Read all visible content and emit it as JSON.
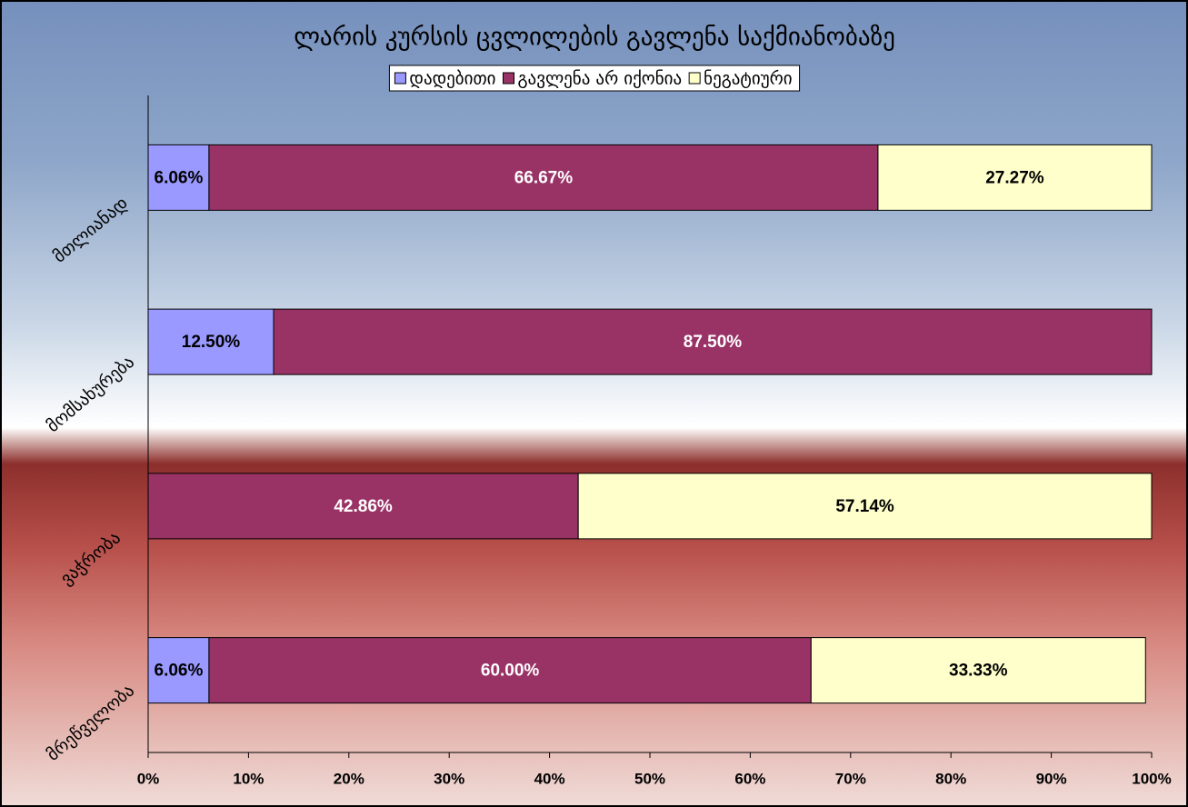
{
  "chart_data": {
    "type": "stacked-bar-horizontal",
    "title": "ლარის კურსის ცვლილების გავლენა საქმიანობაზე",
    "categories": [
      "მთლიანად",
      "მომსახურება",
      "ვაჭრობა",
      "მრეწველობა"
    ],
    "series": [
      {
        "name": "დადებითი",
        "color": "#9999ff",
        "values": [
          6.06,
          12.5,
          null,
          6.06
        ],
        "value_labels": [
          "6.06%",
          "12.50%",
          null,
          "6.06%"
        ]
      },
      {
        "name": "გავლენა არ იქონია",
        "color": "#993366",
        "values": [
          66.67,
          87.5,
          42.86,
          60.0
        ],
        "value_labels": [
          "66.67%",
          "87.50%",
          "42.86%",
          "60.00%"
        ]
      },
      {
        "name": "ნეგატიური",
        "color": "#ffffcc",
        "values": [
          27.27,
          null,
          57.14,
          33.33
        ],
        "value_labels": [
          "27.27%",
          null,
          "57.14%",
          "33.33%"
        ]
      }
    ],
    "xlim": [
      0,
      100
    ],
    "xticks": [
      {
        "value": 0,
        "label": "0%"
      },
      {
        "value": 10,
        "label": "10%"
      },
      {
        "value": 20,
        "label": "20%"
      },
      {
        "value": 30,
        "label": "30%"
      },
      {
        "value": 40,
        "label": "40%"
      },
      {
        "value": 50,
        "label": "50%"
      },
      {
        "value": 60,
        "label": "60%"
      },
      {
        "value": 70,
        "label": "70%"
      },
      {
        "value": 80,
        "label": "80%"
      },
      {
        "value": 90,
        "label": "90%"
      },
      {
        "value": 100,
        "label": "100%"
      }
    ],
    "legend": "top"
  }
}
